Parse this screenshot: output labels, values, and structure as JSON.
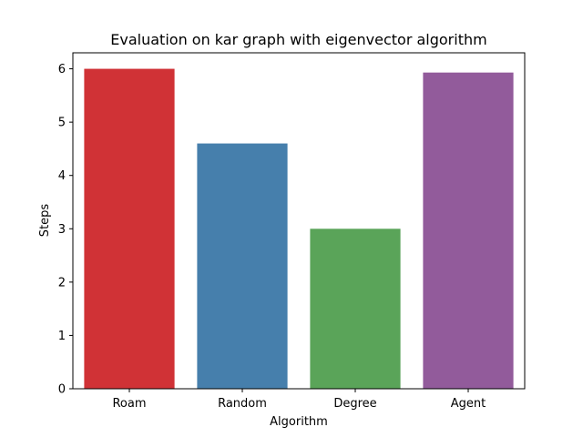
{
  "chart_data": {
    "type": "bar",
    "title": "Evaluation on kar graph with eigenvector algorithm",
    "xlabel": "Algorithm",
    "ylabel": "Steps",
    "categories": [
      "Roam",
      "Random",
      "Degree",
      "Agent"
    ],
    "values": [
      6.0,
      4.6,
      3.0,
      5.93
    ],
    "colors": [
      "#d03236",
      "#467fac",
      "#5aa459",
      "#925b9b"
    ],
    "ylim": [
      0,
      6.3
    ],
    "yticks": [
      0,
      1,
      2,
      3,
      4,
      5,
      6
    ],
    "grid": false
  }
}
